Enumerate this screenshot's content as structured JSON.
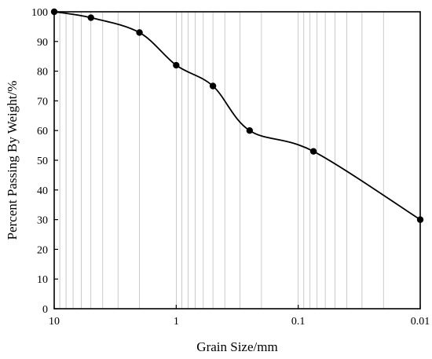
{
  "chart_data": {
    "type": "line",
    "xlabel": "Grain Size/mm",
    "ylabel": "Percent Passing By Weight/%",
    "x_scale": "log",
    "x_reversed": true,
    "xlim": [
      10,
      0.01
    ],
    "ylim": [
      0,
      100
    ],
    "x_ticks": [
      "10",
      "1",
      "0.1",
      "0.01"
    ],
    "y_ticks": [
      "0",
      "10",
      "20",
      "30",
      "40",
      "50",
      "60",
      "70",
      "80",
      "90",
      "100"
    ],
    "grid": {
      "x_minor_log": true,
      "y": false
    },
    "series": [
      {
        "marker": "filled-circle",
        "color": "#000000",
        "x": [
          10,
          5,
          2,
          1,
          0.5,
          0.25,
          0.075,
          0.01
        ],
        "y": [
          100,
          98,
          93,
          82,
          75,
          60,
          53,
          30
        ]
      }
    ]
  }
}
